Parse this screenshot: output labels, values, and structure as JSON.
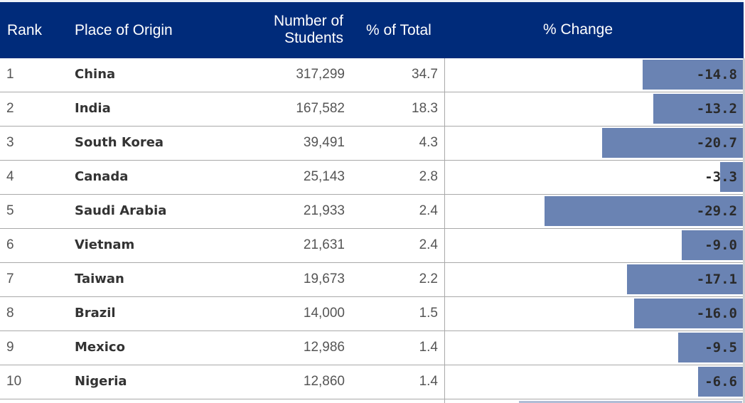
{
  "header": {
    "rank": "Rank",
    "place": "Place of Origin",
    "number_line1": "Number of",
    "number_line2": "Students",
    "pct_total": "% of Total",
    "pct_change": "% Change"
  },
  "chart_data": {
    "type": "table",
    "columns": [
      "Rank",
      "Place of Origin",
      "Number of Students",
      "% of Total",
      "% Change"
    ],
    "xlim": [
      -30,
      0
    ],
    "rows": [
      {
        "rank": "1",
        "place": "China",
        "students": "317,299",
        "pct_total": "34.7",
        "change": -14.8,
        "change_label": "-14.8"
      },
      {
        "rank": "2",
        "place": "India",
        "students": "167,582",
        "pct_total": "18.3",
        "change": -13.2,
        "change_label": "-13.2"
      },
      {
        "rank": "3",
        "place": "South Korea",
        "students": "39,491",
        "pct_total": "4.3",
        "change": -20.7,
        "change_label": "-20.7"
      },
      {
        "rank": "4",
        "place": "Canada",
        "students": "25,143",
        "pct_total": "2.8",
        "change": -3.3,
        "change_label": "-3.3"
      },
      {
        "rank": "5",
        "place": "Saudi Arabia",
        "students": "21,933",
        "pct_total": "2.4",
        "change": -29.2,
        "change_label": "-29.2"
      },
      {
        "rank": "6",
        "place": "Vietnam",
        "students": "21,631",
        "pct_total": "2.4",
        "change": -9.0,
        "change_label": "-9.0"
      },
      {
        "rank": "7",
        "place": "Taiwan",
        "students": "19,673",
        "pct_total": "2.2",
        "change": -17.1,
        "change_label": "-17.1"
      },
      {
        "rank": "8",
        "place": "Brazil",
        "students": "14,000",
        "pct_total": "1.5",
        "change": -16.0,
        "change_label": "-16.0"
      },
      {
        "rank": "9",
        "place": "Mexico",
        "students": "12,986",
        "pct_total": "1.4",
        "change": -9.5,
        "change_label": "-9.5"
      },
      {
        "rank": "10",
        "place": "Nigeria",
        "students": "12,860",
        "pct_total": "1.4",
        "change": -6.6,
        "change_label": "-6.6"
      }
    ]
  },
  "colors": {
    "header_bg": "#002b7a",
    "bar": "#6a83b3"
  }
}
